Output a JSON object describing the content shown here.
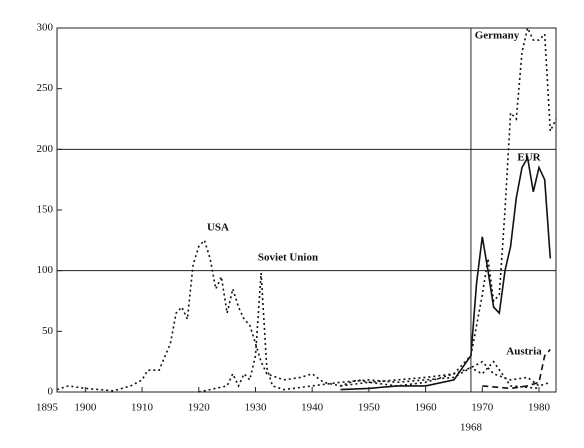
{
  "chart_data": {
    "type": "line",
    "xlim": [
      1895,
      1983
    ],
    "ylim": [
      0,
      300
    ],
    "xticks": [
      1895,
      1900,
      1910,
      1920,
      1930,
      1940,
      1950,
      1960,
      1970,
      1980
    ],
    "yticks": [
      0,
      50,
      100,
      150,
      200,
      250,
      300
    ],
    "grid_lines": [
      100,
      200
    ],
    "marker_year": 1968,
    "series": [
      {
        "name": "USA",
        "color": "#111111",
        "dash": "dotted",
        "x": [
          1895,
          1897,
          1900,
          1905,
          1908,
          1910,
          1911,
          1913,
          1915,
          1916,
          1917,
          1918,
          1919,
          1920,
          1921,
          1922,
          1923,
          1924,
          1925,
          1926,
          1927,
          1928,
          1929,
          1930,
          1931,
          1932,
          1935,
          1938,
          1940,
          1942,
          1945,
          1948,
          1950,
          1955,
          1960,
          1965,
          1968,
          1970,
          1972,
          1975,
          1978,
          1980,
          1982
        ],
        "values": [
          2,
          5,
          3,
          1,
          5,
          10,
          18,
          18,
          40,
          65,
          70,
          60,
          105,
          120,
          125,
          110,
          85,
          95,
          65,
          85,
          70,
          60,
          55,
          40,
          25,
          15,
          10,
          12,
          15,
          8,
          5,
          10,
          8,
          10,
          12,
          15,
          20,
          25,
          15,
          10,
          12,
          5,
          8
        ]
      },
      {
        "name": "Soviet Union",
        "color": "#111111",
        "dash": "dotted",
        "x": [
          1920,
          1925,
          1926,
          1927,
          1928,
          1929,
          1930,
          1931,
          1932,
          1933,
          1935,
          1940,
          1945,
          1950,
          1955,
          1960,
          1965,
          1968,
          1970,
          1972,
          1975,
          1980
        ],
        "values": [
          0,
          5,
          15,
          5,
          15,
          10,
          30,
          98,
          20,
          5,
          2,
          5,
          8,
          10,
          8,
          10,
          12,
          20,
          15,
          25,
          5,
          3
        ]
      },
      {
        "name": "Germany",
        "color": "#111111",
        "dash": "dotted",
        "x": [
          1945,
          1950,
          1955,
          1960,
          1965,
          1968,
          1970,
          1971,
          1972,
          1973,
          1974,
          1975,
          1976,
          1977,
          1978,
          1979,
          1980,
          1981,
          1982,
          1983
        ],
        "values": [
          5,
          8,
          5,
          8,
          15,
          30,
          80,
          110,
          75,
          80,
          150,
          230,
          225,
          280,
          300,
          290,
          290,
          295,
          215,
          225
        ]
      },
      {
        "name": "EUR",
        "color": "#111111",
        "dash": "solid",
        "x": [
          1945,
          1950,
          1955,
          1960,
          1965,
          1968,
          1969,
          1970,
          1971,
          1972,
          1973,
          1974,
          1975,
          1976,
          1977,
          1978,
          1979,
          1980,
          1981,
          1982
        ],
        "values": [
          2,
          3,
          5,
          5,
          10,
          30,
          90,
          128,
          100,
          70,
          65,
          100,
          120,
          160,
          185,
          193,
          165,
          185,
          175,
          110
        ]
      },
      {
        "name": "Austria",
        "color": "#111111",
        "dash": "dashed",
        "x": [
          1970,
          1975,
          1978,
          1980,
          1981,
          1982
        ],
        "values": [
          5,
          3,
          5,
          8,
          30,
          35
        ]
      }
    ]
  }
}
